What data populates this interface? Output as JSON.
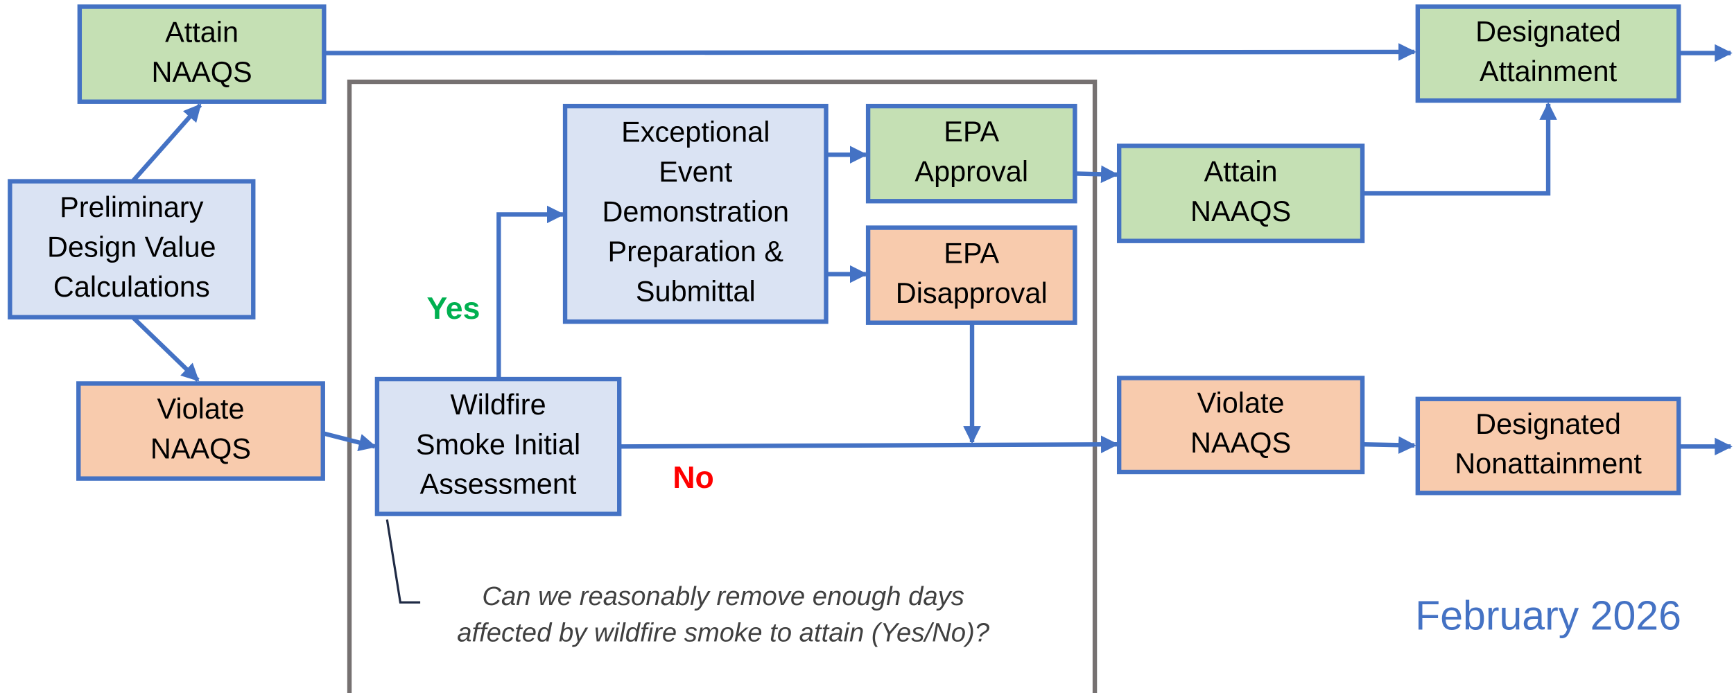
{
  "nodes": [
    {
      "label": [
        "Attain",
        "NAAQS"
      ],
      "kind": "green"
    },
    {
      "label": [
        "Preliminary",
        "Design Value",
        "Calculations"
      ],
      "kind": "blue"
    },
    {
      "label": [
        "Violate",
        "NAAQS"
      ],
      "kind": "orange"
    },
    {
      "label": [
        "Wildfire",
        "Smoke Initial",
        "Assessment"
      ],
      "kind": "blue"
    },
    {
      "label": [
        "Exceptional",
        "Event",
        "Demonstration",
        "Preparation &",
        "Submittal"
      ],
      "kind": "blue"
    },
    {
      "label": [
        "EPA",
        "Approval"
      ],
      "kind": "green"
    },
    {
      "label": [
        "EPA",
        "Disapproval"
      ],
      "kind": "orange"
    },
    {
      "label": [
        "Attain",
        "NAAQS"
      ],
      "kind": "green"
    },
    {
      "label": [
        "Designated",
        "Attainment"
      ],
      "kind": "green"
    },
    {
      "label": [
        "Violate",
        "NAAQS"
      ],
      "kind": "orange"
    },
    {
      "label": [
        "Designated",
        "Nonattainment"
      ],
      "kind": "orange"
    }
  ],
  "yes_label": "Yes",
  "no_label": "No",
  "note": [
    "Can we reasonably remove enough days",
    "affected by wildfire smoke to attain (Yes/No)?"
  ],
  "date": "February 2026"
}
